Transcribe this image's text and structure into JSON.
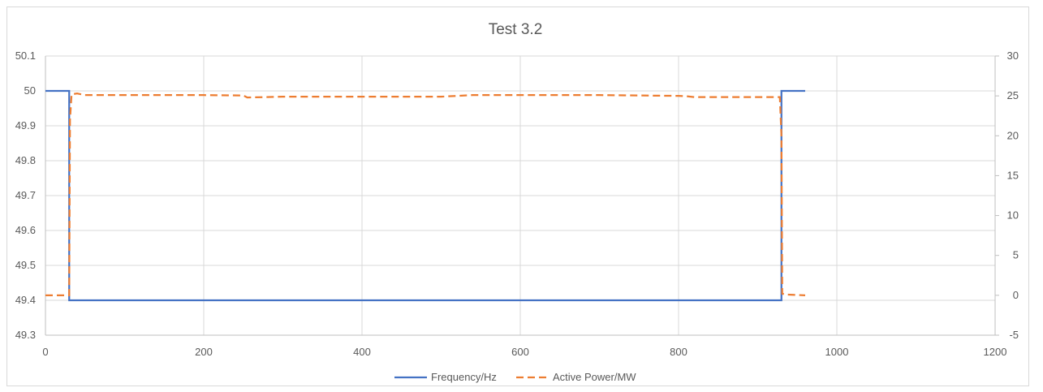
{
  "chart_data": {
    "type": "line",
    "title": "Test 3.2",
    "xlabel": "",
    "ylabel": "",
    "xlim": [
      0,
      1200
    ],
    "x_ticks": [
      0,
      200,
      400,
      600,
      800,
      1000,
      1200
    ],
    "ylim": [
      49.3,
      50.1
    ],
    "y_ticks": [
      49.3,
      49.4,
      49.5,
      49.6,
      49.7,
      49.8,
      49.9,
      50,
      50.1
    ],
    "y_tick_labels": [
      "49.3",
      "49.4",
      "49.5",
      "49.6",
      "49.7",
      "49.8",
      "49.9",
      "50",
      "50.1"
    ],
    "y2lim": [
      -5,
      30
    ],
    "y2_ticks": [
      -5,
      0,
      5,
      10,
      15,
      20,
      25,
      30
    ],
    "y2_tick_labels": [
      "-5",
      "0",
      "5",
      "10",
      "15",
      "20",
      "25",
      "30"
    ],
    "grid": true,
    "legend_position": "bottom",
    "series": [
      {
        "name": "Frequency/Hz",
        "axis": "left",
        "color": "#4472C4",
        "style": "solid",
        "x": [
          0,
          30,
          30,
          930,
          930,
          960
        ],
        "y": [
          50,
          50,
          49.4,
          49.4,
          50,
          50
        ]
      },
      {
        "name": "Active Power/MW",
        "axis": "right",
        "color": "#ED7D31",
        "style": "dashed",
        "x": [
          0,
          30,
          31,
          33,
          40,
          50,
          100,
          200,
          250,
          255,
          300,
          400,
          500,
          540,
          600,
          700,
          800,
          810,
          820,
          900,
          928,
          930,
          931,
          935,
          960
        ],
        "y": [
          0,
          0,
          22,
          25.2,
          25.3,
          25.1,
          25.1,
          25.1,
          25.05,
          24.8,
          24.9,
          24.9,
          24.9,
          25.1,
          25.1,
          25.1,
          25.0,
          24.95,
          24.85,
          24.85,
          24.85,
          20,
          0.2,
          0.1,
          0
        ]
      }
    ]
  }
}
